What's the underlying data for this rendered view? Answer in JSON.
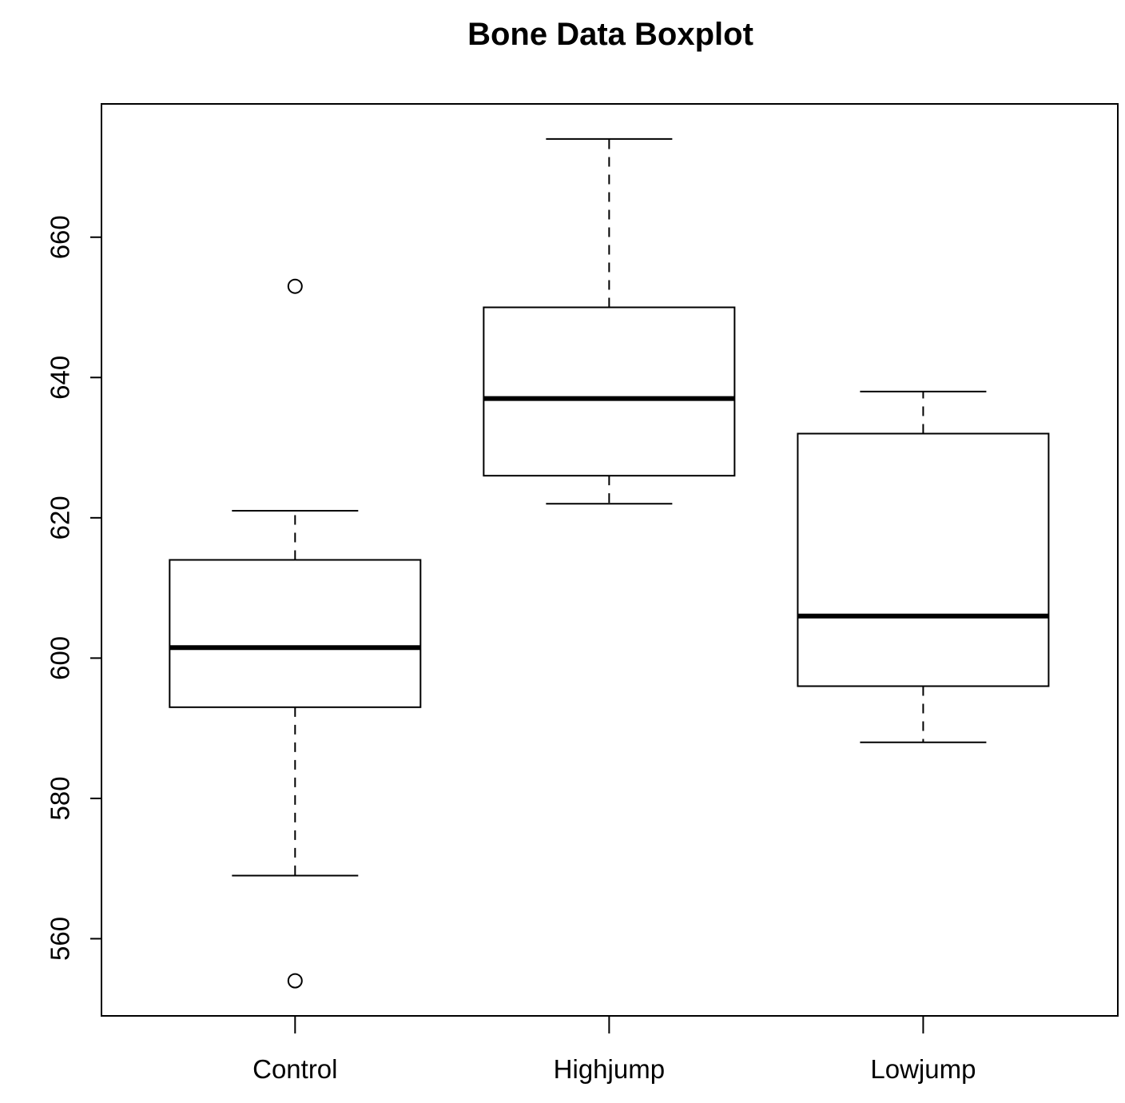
{
  "chart_data": {
    "type": "boxplot",
    "title": "Bone Data Boxplot",
    "xlabel": "",
    "ylabel": "",
    "categories": [
      "Control",
      "Highjump",
      "Lowjump"
    ],
    "ylim": [
      549,
      679
    ],
    "y_ticks": [
      560,
      580,
      600,
      620,
      640,
      660
    ],
    "boxes": [
      {
        "name": "Control",
        "whisker_low": 569,
        "q1": 593,
        "median": 601.5,
        "q3": 614,
        "whisker_high": 621,
        "outliers": [
          554,
          653
        ]
      },
      {
        "name": "Highjump",
        "whisker_low": 622,
        "q1": 626,
        "median": 637,
        "q3": 650,
        "whisker_high": 674,
        "outliers": []
      },
      {
        "name": "Lowjump",
        "whisker_low": 588,
        "q1": 596,
        "median": 606,
        "q3": 632,
        "whisker_high": 638,
        "outliers": []
      }
    ],
    "grid": false,
    "legend": "none"
  }
}
